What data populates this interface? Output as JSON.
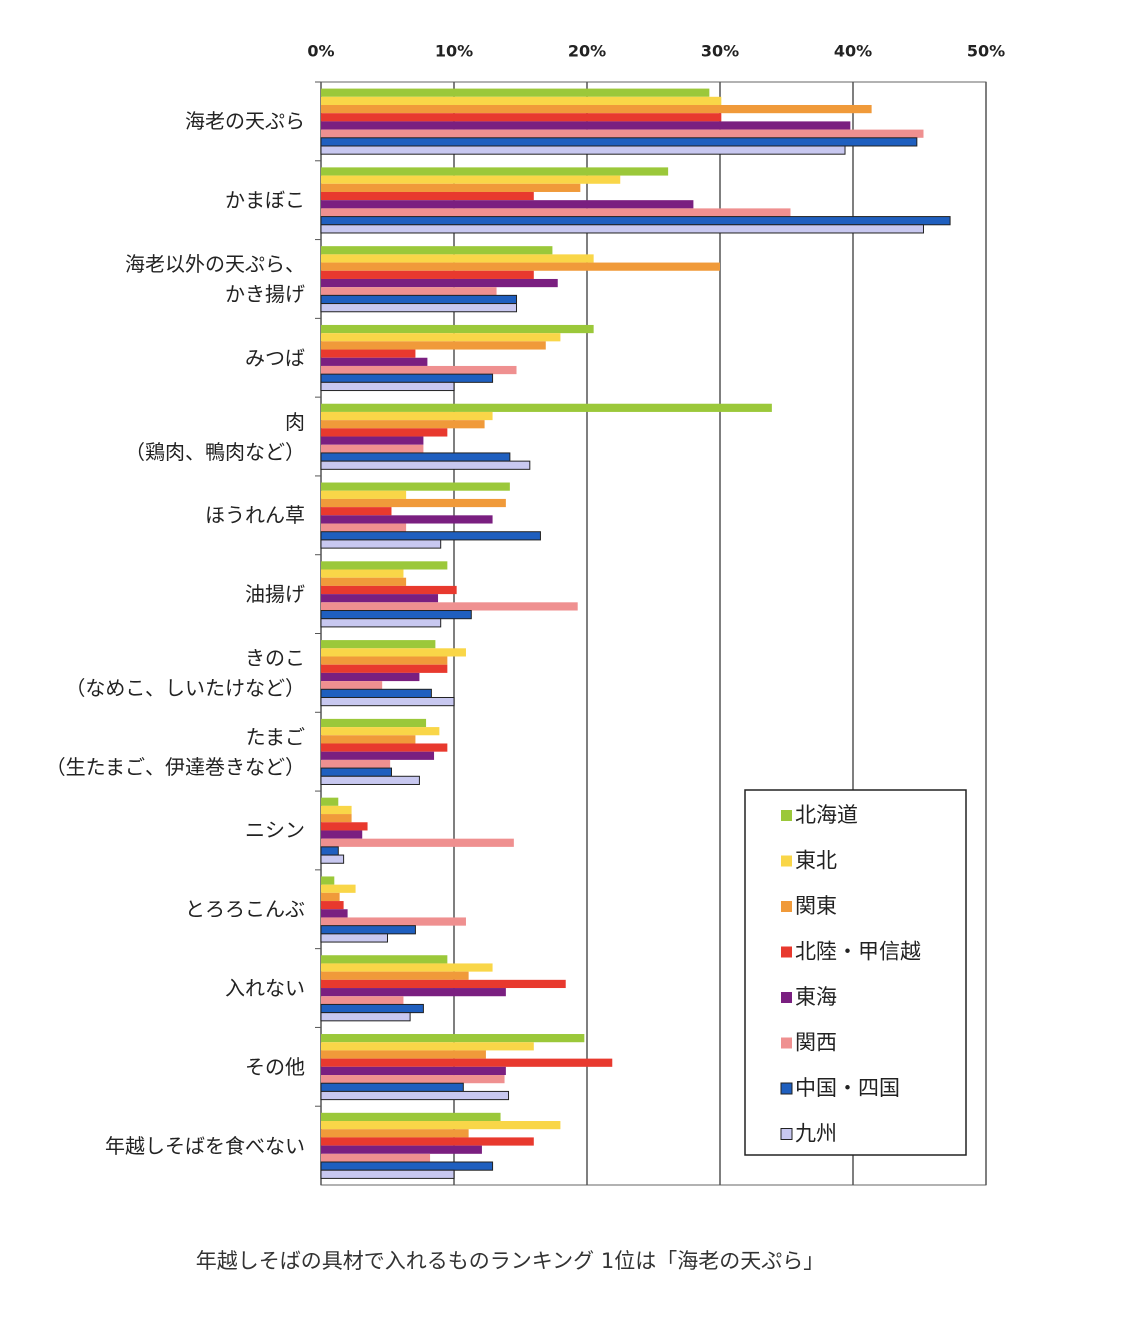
{
  "chart_data": {
    "type": "hbar",
    "caption": "年越しそばの具材で入れるものランキング 1位は「海老の天ぷら」",
    "categories": [
      "海老の天ぷら",
      "かまぼこ",
      "海老以外の天ぷら、\nかき揚げ",
      "みつば",
      "肉\n（鶏肉、鴨肉など）",
      "ほうれん草",
      "油揚げ",
      "きのこ\n（なめこ、しいたけなど）",
      "たまご\n（生たまご、伊達巻きなど）",
      "ニシン",
      "とろろこんぶ",
      "入れない",
      "その他",
      "年越しそばを食べない"
    ],
    "series": [
      {
        "name": "北海道",
        "color": "#9bc83a",
        "values": [
          29.2,
          26.1,
          17.4,
          20.5,
          33.9,
          14.2,
          9.5,
          8.6,
          7.9,
          1.3,
          1.0,
          9.5,
          19.8,
          13.5
        ]
      },
      {
        "name": "東北",
        "color": "#f9d648",
        "values": [
          30.1,
          22.5,
          20.5,
          18.0,
          12.9,
          6.4,
          6.2,
          10.9,
          8.9,
          2.3,
          2.6,
          12.9,
          16.0,
          18.0
        ]
      },
      {
        "name": "関東",
        "color": "#f09a3a",
        "values": [
          41.4,
          19.5,
          30.0,
          16.9,
          12.3,
          13.9,
          6.4,
          9.5,
          7.1,
          2.3,
          1.4,
          11.1,
          12.4,
          11.1
        ]
      },
      {
        "name": "北陸・甲信越",
        "color": "#e8392e",
        "values": [
          30.1,
          16.0,
          16.0,
          7.1,
          9.5,
          5.3,
          10.2,
          9.5,
          9.5,
          3.5,
          1.7,
          18.4,
          21.9,
          16.0
        ]
      },
      {
        "name": "東海",
        "color": "#7a1f80",
        "values": [
          39.8,
          28.0,
          17.8,
          8.0,
          7.7,
          12.9,
          8.8,
          7.4,
          8.5,
          3.1,
          2.0,
          13.9,
          13.9,
          12.1
        ]
      },
      {
        "name": "関西",
        "color": "#ef9090",
        "values": [
          45.3,
          35.3,
          13.2,
          14.7,
          7.7,
          6.4,
          19.3,
          4.6,
          5.2,
          14.5,
          10.9,
          6.2,
          13.8,
          8.2
        ]
      },
      {
        "name": "中国・四国",
        "color": "#1f5fbf",
        "values": [
          44.8,
          47.3,
          14.7,
          12.9,
          14.2,
          16.5,
          11.3,
          8.3,
          5.3,
          1.3,
          7.1,
          7.7,
          10.7,
          12.9
        ]
      },
      {
        "name": "九州",
        "color": "#c8c8f0",
        "values": [
          39.4,
          45.3,
          14.7,
          10.0,
          15.7,
          9.0,
          9.0,
          10.0,
          7.4,
          1.7,
          5.0,
          6.7,
          14.1,
          10.0
        ]
      }
    ],
    "xlim": [
      0,
      50
    ],
    "xticks": [
      {
        "value": 0,
        "label": "0%"
      },
      {
        "value": 10,
        "label": "10%"
      },
      {
        "value": 20,
        "label": "20%"
      },
      {
        "value": 30,
        "label": "30%"
      },
      {
        "value": 40,
        "label": "40%"
      },
      {
        "value": 50,
        "label": "50%"
      }
    ],
    "grid": true,
    "legend": "lower right"
  }
}
